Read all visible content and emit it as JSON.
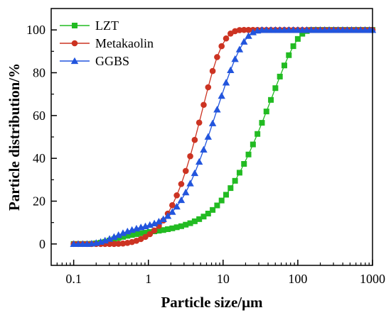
{
  "chart_data": {
    "type": "line",
    "xlabel": "Particle size/μm",
    "ylabel": "Particle distribution/%",
    "xscale": "log",
    "xlim": [
      0.05,
      1000
    ],
    "ylim": [
      -10,
      110
    ],
    "xticks": [
      0.1,
      1,
      10,
      100,
      1000
    ],
    "xtick_labels": [
      "0.1",
      "1",
      "10",
      "100",
      "1000"
    ],
    "yticks": [
      0,
      20,
      40,
      60,
      80,
      100
    ],
    "ytick_labels": [
      "0",
      "20",
      "40",
      "60",
      "80",
      "100"
    ],
    "grid": false,
    "legend_position": "top-left",
    "series": [
      {
        "name": "LZT",
        "color": "#22bb22",
        "marker": "square",
        "x": [
          0.1,
          0.115,
          0.132,
          0.151,
          0.174,
          0.2,
          0.23,
          0.263,
          0.302,
          0.347,
          0.398,
          0.457,
          0.525,
          0.603,
          0.692,
          0.794,
          0.912,
          1.047,
          1.202,
          1.38,
          1.585,
          1.82,
          2.089,
          2.399,
          2.754,
          3.162,
          3.631,
          4.169,
          4.786,
          5.495,
          6.31,
          7.244,
          8.318,
          9.55,
          10.965,
          12.589,
          14.454,
          16.596,
          19.055,
          21.878,
          25.119,
          28.84,
          33.113,
          38.019,
          43.652,
          50.119,
          57.544,
          66.069,
          75.858,
          87.096,
          100,
          114.815,
          131.826,
          151.356,
          173.78,
          199.526,
          229.087,
          263.027,
          301.995,
          346.737,
          398.107,
          457.088,
          524.807,
          602.56,
          691.831,
          794.328,
          912.011,
          1000
        ],
        "y": [
          0,
          0,
          0,
          0,
          0.1,
          0.3,
          0.6,
          1,
          1.6,
          2.2,
          2.8,
          3.3,
          3.8,
          4.2,
          4.6,
          5,
          5.3,
          5.6,
          5.9,
          6.2,
          6.5,
          6.9,
          7.3,
          7.8,
          8.3,
          9,
          9.7,
          10.6,
          11.6,
          12.8,
          14.2,
          15.9,
          18,
          20.3,
          23,
          26.1,
          29.5,
          33.3,
          37.4,
          41.8,
          46.5,
          51.4,
          56.6,
          61.9,
          67.3,
          72.8,
          78.2,
          83.4,
          88.2,
          92.4,
          95.8,
          98.2,
          99.5,
          100,
          100,
          100,
          100,
          100,
          100,
          100,
          100,
          100,
          100,
          100,
          100,
          100,
          100,
          100
        ]
      },
      {
        "name": "Metakaolin",
        "color": "#cc3322",
        "marker": "circle",
        "x": [
          0.1,
          0.115,
          0.132,
          0.151,
          0.174,
          0.2,
          0.23,
          0.263,
          0.302,
          0.347,
          0.398,
          0.457,
          0.525,
          0.603,
          0.692,
          0.794,
          0.912,
          1.047,
          1.202,
          1.38,
          1.585,
          1.82,
          2.089,
          2.399,
          2.754,
          3.162,
          3.631,
          4.169,
          4.786,
          5.495,
          6.31,
          7.244,
          8.318,
          9.55,
          10.965,
          12.589,
          14.454,
          16.596,
          19.055,
          21.878,
          25.119,
          28.84,
          33.113,
          38.019,
          43.652,
          50.119,
          57.544,
          66.069,
          75.858,
          87.096,
          100,
          114.815,
          131.826,
          151.356,
          173.78,
          199.526,
          229.087,
          263.027,
          301.995,
          346.737,
          398.107,
          457.088,
          524.807,
          602.56,
          691.831,
          794.328,
          912.011,
          1000
        ],
        "y": [
          0,
          0,
          0,
          0,
          0,
          0,
          0,
          0,
          0,
          0,
          0.1,
          0.2,
          0.5,
          0.9,
          1.5,
          2.3,
          3.3,
          4.6,
          6.3,
          8.4,
          11,
          14.2,
          18.1,
          22.7,
          28,
          34.1,
          41,
          48.6,
          56.7,
          65,
          73.2,
          80.8,
          87.3,
          92.4,
          96,
          98.3,
          99.4,
          99.9,
          100,
          100,
          100,
          100,
          100,
          100,
          100,
          100,
          100,
          100,
          100,
          100,
          100,
          100,
          100,
          100,
          100,
          100,
          100,
          100,
          100,
          100,
          100,
          100,
          100,
          100,
          100,
          100,
          100,
          100
        ]
      },
      {
        "name": "GGBS",
        "color": "#2255dd",
        "marker": "triangle",
        "x": [
          0.1,
          0.115,
          0.132,
          0.151,
          0.174,
          0.2,
          0.23,
          0.263,
          0.302,
          0.347,
          0.398,
          0.457,
          0.525,
          0.603,
          0.692,
          0.794,
          0.912,
          1.047,
          1.202,
          1.38,
          1.585,
          1.82,
          2.089,
          2.399,
          2.754,
          3.162,
          3.631,
          4.169,
          4.786,
          5.495,
          6.31,
          7.244,
          8.318,
          9.55,
          10.965,
          12.589,
          14.454,
          16.596,
          19.055,
          21.878,
          25.119,
          28.84,
          33.113,
          38.019,
          43.652,
          50.119,
          57.544,
          66.069,
          75.858,
          87.096,
          100,
          114.815,
          131.826,
          151.356,
          173.78,
          199.526,
          229.087,
          263.027,
          301.995,
          346.737,
          398.107,
          457.088,
          524.807,
          602.56,
          691.831,
          794.328,
          912.011,
          1000
        ],
        "y": [
          0,
          0,
          0,
          0,
          0.2,
          0.5,
          1,
          1.6,
          2.4,
          3.3,
          4.2,
          5.1,
          5.9,
          6.6,
          7.2,
          7.8,
          8.3,
          8.9,
          9.6,
          10.5,
          11.6,
          13.1,
          15,
          17.5,
          20.5,
          24.1,
          28.3,
          33.1,
          38.4,
          44.1,
          50.1,
          56.4,
          62.8,
          69.2,
          75.4,
          81.2,
          86.4,
          90.9,
          94.5,
          97.2,
          98.9,
          99.7,
          100,
          100,
          100,
          100,
          100,
          100,
          100,
          100,
          100,
          100,
          100,
          100,
          100,
          100,
          100,
          100,
          100,
          100,
          100,
          100,
          100,
          100,
          100,
          100,
          100,
          100
        ]
      }
    ]
  }
}
